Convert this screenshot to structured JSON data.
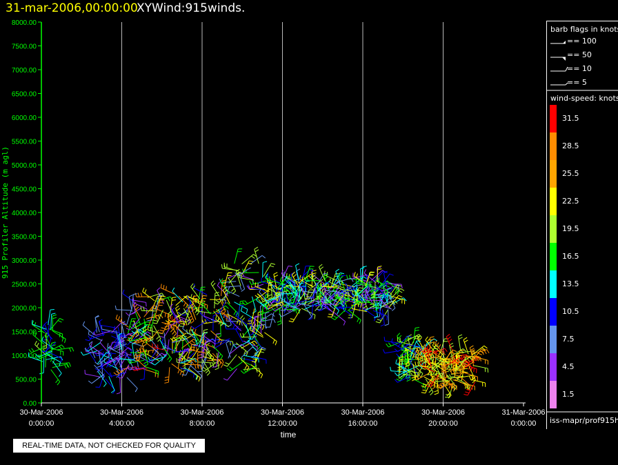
{
  "header": {
    "date_label": "31-mar-2006,00:00:00",
    "product_label": "XYWind:915winds."
  },
  "notice": "REAL-TIME DATA, NOT CHECKED FOR QUALITY",
  "legend": {
    "barb_title": "barb flags in knots",
    "barb_items": [
      "== 100",
      "== 50",
      "== 10",
      "== 5"
    ],
    "speed_title": "wind-speed: knots",
    "speed_bins": [
      {
        "label": "1.5",
        "color": "#ee82ee"
      },
      {
        "label": "4.5",
        "color": "#9b30ff"
      },
      {
        "label": "7.5",
        "color": "#6495ed"
      },
      {
        "label": "10.5",
        "color": "#0000ff"
      },
      {
        "label": "13.5",
        "color": "#00ffff"
      },
      {
        "label": "16.5",
        "color": "#00ff00"
      },
      {
        "label": "19.5",
        "color": "#adff2f"
      },
      {
        "label": "22.5",
        "color": "#ffff00"
      },
      {
        "label": "25.5",
        "color": "#ffa500"
      },
      {
        "label": "28.5",
        "color": "#ff8c00"
      },
      {
        "label": "31.5",
        "color": "#ff0000"
      }
    ],
    "source_id": "iss-mapr/prof915h"
  },
  "chart_data": {
    "type": "scatter",
    "title": "XYWind:915winds.",
    "xlabel": "time",
    "ylabel": "915 Profiler Altitude (m agl)",
    "x_ticks": [
      {
        "date": "30-Mar-2006",
        "time": "0:00:00"
      },
      {
        "date": "30-Mar-2006",
        "time": "4:00:00"
      },
      {
        "date": "30-Mar-2006",
        "time": "8:00:00"
      },
      {
        "date": "30-Mar-2006",
        "time": "12:00:00"
      },
      {
        "date": "30-Mar-2006",
        "time": "16:00:00"
      },
      {
        "date": "30-Mar-2006",
        "time": "20:00:00"
      },
      {
        "date": "31-Mar-2006",
        "time": "0:00:00"
      }
    ],
    "xlim": [
      "30-Mar-2006 0:00:00",
      "31-Mar-2006 0:00:00"
    ],
    "y_ticks": [
      "0.00",
      "500.00",
      "1000.00",
      "1500.00",
      "2000.00",
      "2500.00",
      "3000.00",
      "3500.00",
      "4000.00",
      "4500.00",
      "5000.00",
      "5500.00",
      "6000.00",
      "6500.00",
      "7000.00",
      "7500.00",
      "8000.00"
    ],
    "ylim": [
      0,
      8000
    ],
    "grid": "vertical lines at labelled times",
    "clusters": [
      {
        "hour_start": 0.0,
        "hour_end": 0.8,
        "alt_min": 600,
        "alt_max": 1700,
        "speed_min": 10,
        "speed_max": 19
      },
      {
        "hour_start": 2.6,
        "hour_end": 4.3,
        "alt_min": 500,
        "alt_max": 1600,
        "speed_min": 3,
        "speed_max": 14
      },
      {
        "hour_start": 4.3,
        "hour_end": 9.0,
        "alt_min": 700,
        "alt_max": 2300,
        "speed_min": 3,
        "speed_max": 31
      },
      {
        "hour_start": 9.0,
        "hour_end": 11.2,
        "alt_min": 700,
        "alt_max": 3000,
        "speed_min": 3,
        "speed_max": 24
      },
      {
        "hour_start": 11.2,
        "hour_end": 17.5,
        "alt_min": 1900,
        "alt_max": 2600,
        "speed_min": 3,
        "speed_max": 22
      },
      {
        "hour_start": 17.7,
        "hour_end": 19.2,
        "alt_min": 500,
        "alt_max": 1300,
        "speed_min": 10,
        "speed_max": 24
      },
      {
        "hour_start": 19.2,
        "hour_end": 21.6,
        "alt_min": 400,
        "alt_max": 1100,
        "speed_min": 18,
        "speed_max": 32
      }
    ]
  }
}
